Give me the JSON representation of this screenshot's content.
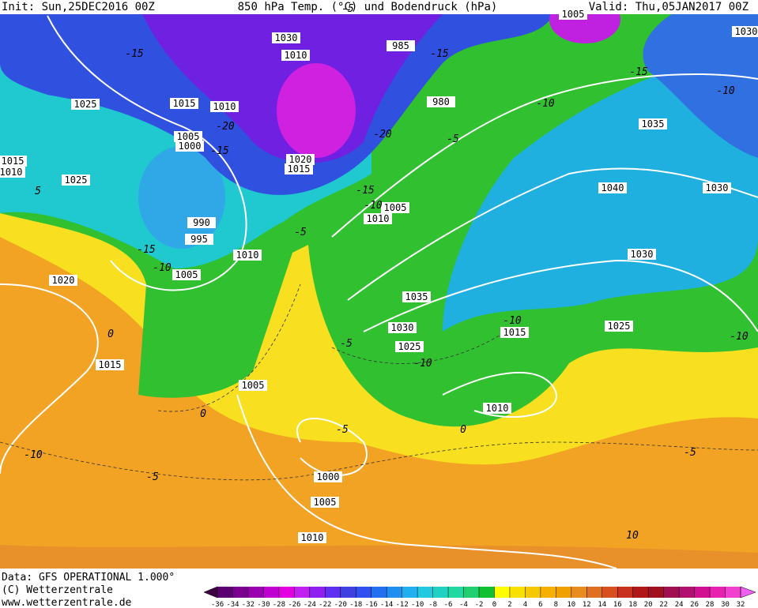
{
  "header": {
    "init": "Init: Sun,25DEC2016 00Z",
    "title": "850 hPa Temp. (°C) und Bodendruck (hPa)",
    "valid": "Valid: Thu,05JAN2017 00Z"
  },
  "isobar_labels": [
    "1005",
    "1010",
    "985",
    "980",
    "1025",
    "1015",
    "1010",
    "1005",
    "1000",
    "1020",
    "1015",
    "1025",
    "990",
    "995",
    "1010",
    "1005",
    "1020",
    "1015",
    "1010",
    "1005",
    "1035",
    "1030",
    "1025",
    "1015",
    "1010",
    "1005",
    "1000",
    "1005",
    "1010",
    "1035",
    "1040",
    "1030",
    "1030",
    "1025",
    "1030",
    "1030",
    "1015",
    "1010"
  ],
  "temp_labels": [
    "-15",
    "-15",
    "-10",
    "-10",
    "-5",
    "-20",
    "-20",
    "-15",
    "-15",
    "-10",
    "5",
    "-15",
    "-10",
    "-5",
    "0",
    "-5",
    "-10",
    "-10",
    "-5",
    "0",
    "-5",
    "-10",
    "-5",
    "10",
    "0",
    "-15",
    "-10",
    "-5"
  ],
  "footer": {
    "data": "Data: GFS OPERATIONAL 1.000°",
    "copyright": "(C) Wetterzentrale",
    "url": "www.wetterzentrale.de"
  },
  "colorbar": {
    "labels": [
      -36,
      -34,
      -32,
      -30,
      -28,
      -26,
      -24,
      -22,
      -20,
      -18,
      -16,
      -14,
      -12,
      -10,
      -8,
      -6,
      -4,
      -2,
      0,
      2,
      4,
      6,
      8,
      10,
      12,
      14,
      16,
      18,
      20,
      22,
      24,
      26,
      28,
      30,
      32
    ],
    "colors": [
      "#400040",
      "#5a0070",
      "#7a0090",
      "#9a00b0",
      "#c000d0",
      "#e000e0",
      "#c020f0",
      "#9020f0",
      "#6030f0",
      "#4040e0",
      "#3050f0",
      "#2070f0",
      "#2090f0",
      "#20b0f0",
      "#20c8e0",
      "#20d0c0",
      "#20d8a0",
      "#20d070",
      "#10c030",
      "#ffff00",
      "#f8e000",
      "#f5c800",
      "#f5b000",
      "#f0a000",
      "#e88c20",
      "#e07020",
      "#d85020",
      "#c83020",
      "#b01818",
      "#a01020",
      "#a01050",
      "#b01070",
      "#d01090",
      "#e820b0",
      "#f040d0",
      "#f060f0"
    ]
  }
}
